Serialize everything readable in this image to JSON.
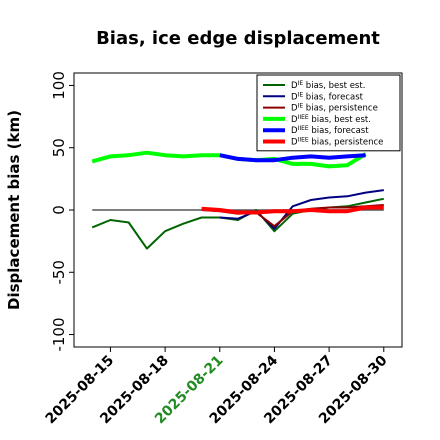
{
  "chart_data": {
    "type": "line",
    "title": "Bias, ice edge displacement",
    "ylabel": "Displacement bias (km)",
    "xlabel": "",
    "ylim": [
      -110,
      110
    ],
    "yticks": [
      -100,
      -50,
      0,
      50,
      100
    ],
    "xlim": [
      "2025-08-13",
      "2025-08-31"
    ],
    "xticks": [
      {
        "date": "2025-08-15",
        "label": "2025-08-15",
        "color": "#000000"
      },
      {
        "date": "2025-08-18",
        "label": "2025-08-18",
        "color": "#000000"
      },
      {
        "date": "2025-08-21",
        "label": "2025-08-21",
        "color": "#228B22"
      },
      {
        "date": "2025-08-24",
        "label": "2025-08-24",
        "color": "#000000"
      },
      {
        "date": "2025-08-27",
        "label": "2025-08-27",
        "color": "#000000"
      },
      {
        "date": "2025-08-30",
        "label": "2025-08-30",
        "color": "#000000"
      }
    ],
    "zero_line": true,
    "legend_position": "top-right",
    "series": [
      {
        "name": "D<sup>IE</sup> bias, best est.",
        "label_base": "D",
        "label_sup": "IE",
        "label_rest": " bias, best est.",
        "color": "#006400",
        "width": 2,
        "x": [
          "2025-08-14",
          "2025-08-15",
          "2025-08-16",
          "2025-08-17",
          "2025-08-18",
          "2025-08-19",
          "2025-08-20",
          "2025-08-21",
          "2025-08-22",
          "2025-08-23",
          "2025-08-24",
          "2025-08-25",
          "2025-08-26",
          "2025-08-27",
          "2025-08-28",
          "2025-08-29",
          "2025-08-30"
        ],
        "y": [
          -14,
          -8,
          -10,
          -31,
          -17,
          -11,
          -6,
          -6,
          -8,
          0,
          -17,
          -3,
          0,
          2,
          3,
          6,
          9
        ]
      },
      {
        "name": "D<sup>IE</sup> bias, forecast",
        "label_base": "D",
        "label_sup": "IE",
        "label_rest": " bias, forecast",
        "color": "#000080",
        "width": 2,
        "x": [
          "2025-08-21",
          "2025-08-22",
          "2025-08-23",
          "2025-08-24",
          "2025-08-25",
          "2025-08-26",
          "2025-08-27",
          "2025-08-28",
          "2025-08-29",
          "2025-08-30"
        ],
        "y": [
          -6,
          -7,
          -1,
          -15,
          3,
          8,
          10,
          11,
          14,
          16
        ]
      },
      {
        "name": "D<sup>IE</sup> bias, persistence",
        "label_base": "D",
        "label_sup": "IE",
        "label_rest": " bias, persistence",
        "color": "#8B0000",
        "width": 2,
        "x": [
          "2025-08-20",
          "2025-08-21",
          "2025-08-22",
          "2025-08-23",
          "2025-08-24",
          "2025-08-25",
          "2025-08-26",
          "2025-08-27",
          "2025-08-28",
          "2025-08-29",
          "2025-08-30"
        ],
        "y": [
          0,
          -1,
          -3,
          -2,
          -13,
          -1,
          1,
          2,
          2,
          3,
          4
        ]
      },
      {
        "name": "D<sup>IIEE</sup> bias, best est.",
        "label_base": "D",
        "label_sup": "IIEE",
        "label_rest": " bias, best est.",
        "color": "#00FF00",
        "width": 4,
        "x": [
          "2025-08-14",
          "2025-08-15",
          "2025-08-16",
          "2025-08-17",
          "2025-08-18",
          "2025-08-19",
          "2025-08-20",
          "2025-08-21",
          "2025-08-22",
          "2025-08-23",
          "2025-08-24",
          "2025-08-25",
          "2025-08-26",
          "2025-08-27",
          "2025-08-28",
          "2025-08-29"
        ],
        "y": [
          39,
          43,
          44,
          46,
          44,
          43,
          44,
          44,
          41,
          40,
          41,
          37,
          37,
          35,
          36,
          45
        ]
      },
      {
        "name": "D<sup>IIEE</sup> bias, forecast",
        "label_base": "D",
        "label_sup": "IIEE",
        "label_rest": " bias, forecast",
        "color": "#0000FF",
        "width": 4,
        "x": [
          "2025-08-21",
          "2025-08-22",
          "2025-08-23",
          "2025-08-24",
          "2025-08-25",
          "2025-08-26",
          "2025-08-27",
          "2025-08-28",
          "2025-08-29"
        ],
        "y": [
          44,
          41,
          40,
          40,
          42,
          43,
          42,
          43,
          44
        ]
      },
      {
        "name": "D<sup>IIEE</sup> bias, persistence",
        "label_base": "D",
        "label_sup": "IIEE",
        "label_rest": " bias, persistence",
        "color": "#FF0000",
        "width": 4,
        "x": [
          "2025-08-20",
          "2025-08-21",
          "2025-08-22",
          "2025-08-23",
          "2025-08-24",
          "2025-08-25",
          "2025-08-26",
          "2025-08-27",
          "2025-08-28",
          "2025-08-29",
          "2025-08-30"
        ],
        "y": [
          1,
          0,
          -2,
          -2,
          -1,
          -1,
          0,
          -1,
          -1,
          2,
          2
        ]
      }
    ]
  }
}
